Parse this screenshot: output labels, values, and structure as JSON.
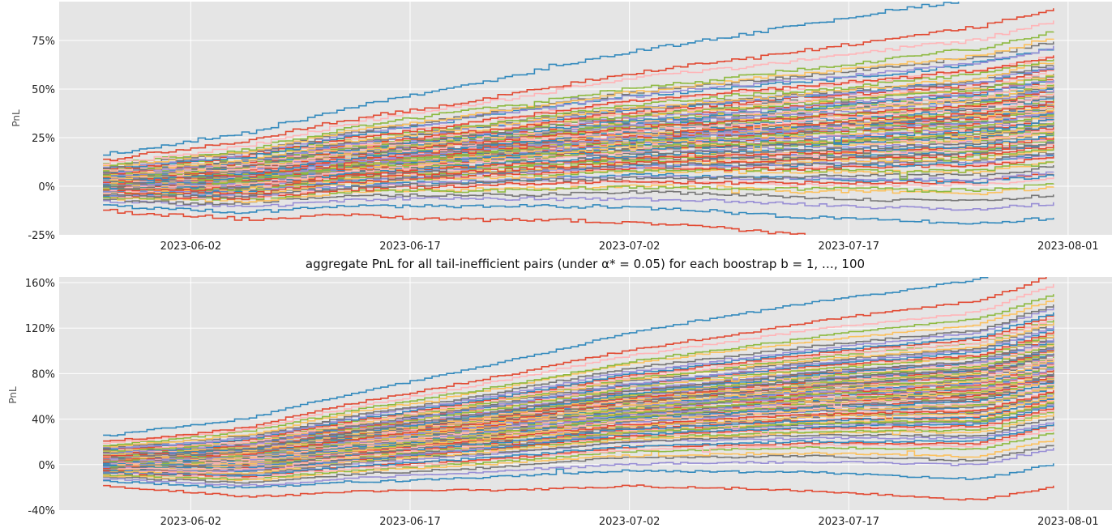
{
  "chart_data": [
    {
      "type": "line",
      "title": "",
      "xlabel": "",
      "ylabel": "PnL",
      "x_start": "2023-05-27",
      "x_end": "2023-07-31",
      "xlim": [
        "2023-05-24",
        "2023-08-04"
      ],
      "ylim": [
        -25,
        95
      ],
      "xticks": [
        "2023-06-02",
        "2023-06-17",
        "2023-07-02",
        "2023-07-17",
        "2023-08-01"
      ],
      "yticks": [
        -25,
        0,
        25,
        50,
        75
      ],
      "ytick_format": "percent",
      "grid": true,
      "series_count": 100,
      "final_range": [
        14,
        89
      ],
      "median_trend": [
        [
          0,
          2
        ],
        [
          0.15,
          5
        ],
        [
          0.25,
          12
        ],
        [
          0.4,
          18
        ],
        [
          0.55,
          24
        ],
        [
          0.75,
          28
        ],
        [
          0.92,
          32
        ],
        [
          1.0,
          38
        ]
      ],
      "step_days": [
        9,
        16,
        24,
        30,
        38,
        48,
        57
      ],
      "spread_scale": 13
    },
    {
      "type": "line",
      "title": "aggregate PnL for all tail-inefficient pairs (under α* = 0.05) for each boostrap b = 1, …, 100",
      "xlabel": "",
      "ylabel": "PnL",
      "x_start": "2023-05-27",
      "x_end": "2023-07-31",
      "xlim": [
        "2023-05-24",
        "2023-08-04"
      ],
      "ylim": [
        -40,
        165
      ],
      "xticks": [
        "2023-06-02",
        "2023-06-17",
        "2023-07-02",
        "2023-07-17",
        "2023-08-01"
      ],
      "yticks": [
        -40,
        0,
        40,
        80,
        120,
        160
      ],
      "ytick_format": "percent",
      "grid": true,
      "series_count": 100,
      "final_range": [
        45,
        158
      ],
      "median_trend": [
        [
          0,
          3
        ],
        [
          0.15,
          6
        ],
        [
          0.25,
          18
        ],
        [
          0.4,
          32
        ],
        [
          0.55,
          48
        ],
        [
          0.75,
          60
        ],
        [
          0.92,
          66
        ],
        [
          1.0,
          85
        ]
      ],
      "step_days": [
        9,
        17,
        24,
        30,
        37,
        48,
        57
      ],
      "spread_scale": 20
    }
  ],
  "colors": {
    "plot_background": "#e5e5e5",
    "grid": "#ffffff",
    "palette": [
      "#e24a33",
      "#348abd",
      "#988ed5",
      "#777777",
      "#fbc15e",
      "#8eba42",
      "#ffb5b8"
    ]
  }
}
